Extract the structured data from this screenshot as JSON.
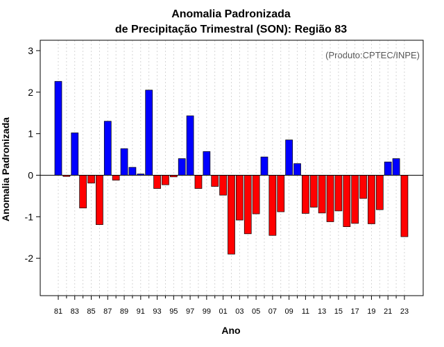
{
  "chart_data": {
    "type": "bar",
    "title_line1": "Anomalia Padronizada",
    "title_line2": "de Precipitação Trimestral (SON): Região 83",
    "xlabel": "Ano",
    "ylabel": "Anomalia Padronizada",
    "credit": "(Produto:CPTEC/INPE)",
    "ylim": [
      -2.9,
      3.25
    ],
    "yticks": [
      -2,
      -1,
      0,
      1,
      2,
      3
    ],
    "ytick_labels": [
      "-2",
      "-1",
      "0",
      "1",
      "2",
      "3"
    ],
    "xtick_labels": [
      "81",
      "83",
      "85",
      "87",
      "89",
      "91",
      "93",
      "95",
      "97",
      "99",
      "01",
      "03",
      "05",
      "07",
      "09",
      "11",
      "13",
      "15",
      "17",
      "19",
      "21",
      "23"
    ],
    "categories": [
      "1981",
      "1982",
      "1983",
      "1984",
      "1985",
      "1986",
      "1987",
      "1988",
      "1989",
      "1990",
      "1991",
      "1992",
      "1993",
      "1994",
      "1995",
      "1996",
      "1997",
      "1998",
      "1999",
      "2000",
      "2001",
      "2002",
      "2003",
      "2004",
      "2005",
      "2006",
      "2007",
      "2008",
      "2009",
      "2010",
      "2011",
      "2012",
      "2013",
      "2014",
      "2015",
      "2016",
      "2017",
      "2018",
      "2019",
      "2020",
      "2021",
      "2022",
      "2023"
    ],
    "values": [
      2.26,
      -0.03,
      1.02,
      -0.79,
      -0.19,
      -1.19,
      1.3,
      -0.12,
      0.64,
      0.19,
      0.03,
      2.05,
      -0.32,
      -0.23,
      -0.04,
      0.4,
      1.43,
      -0.32,
      0.57,
      -0.27,
      -0.48,
      -1.9,
      -1.08,
      -1.41,
      -0.93,
      0.44,
      -1.45,
      -0.88,
      0.85,
      0.28,
      -0.92,
      -0.77,
      -0.91,
      -1.12,
      -0.86,
      -1.24,
      -1.16,
      -0.56,
      -1.17,
      -0.83,
      0.32,
      0.4,
      -1.48
    ],
    "colors": {
      "positive": "#0000ff",
      "negative": "#ff0000",
      "outline": "#000000",
      "grid": "#cccccc"
    }
  }
}
